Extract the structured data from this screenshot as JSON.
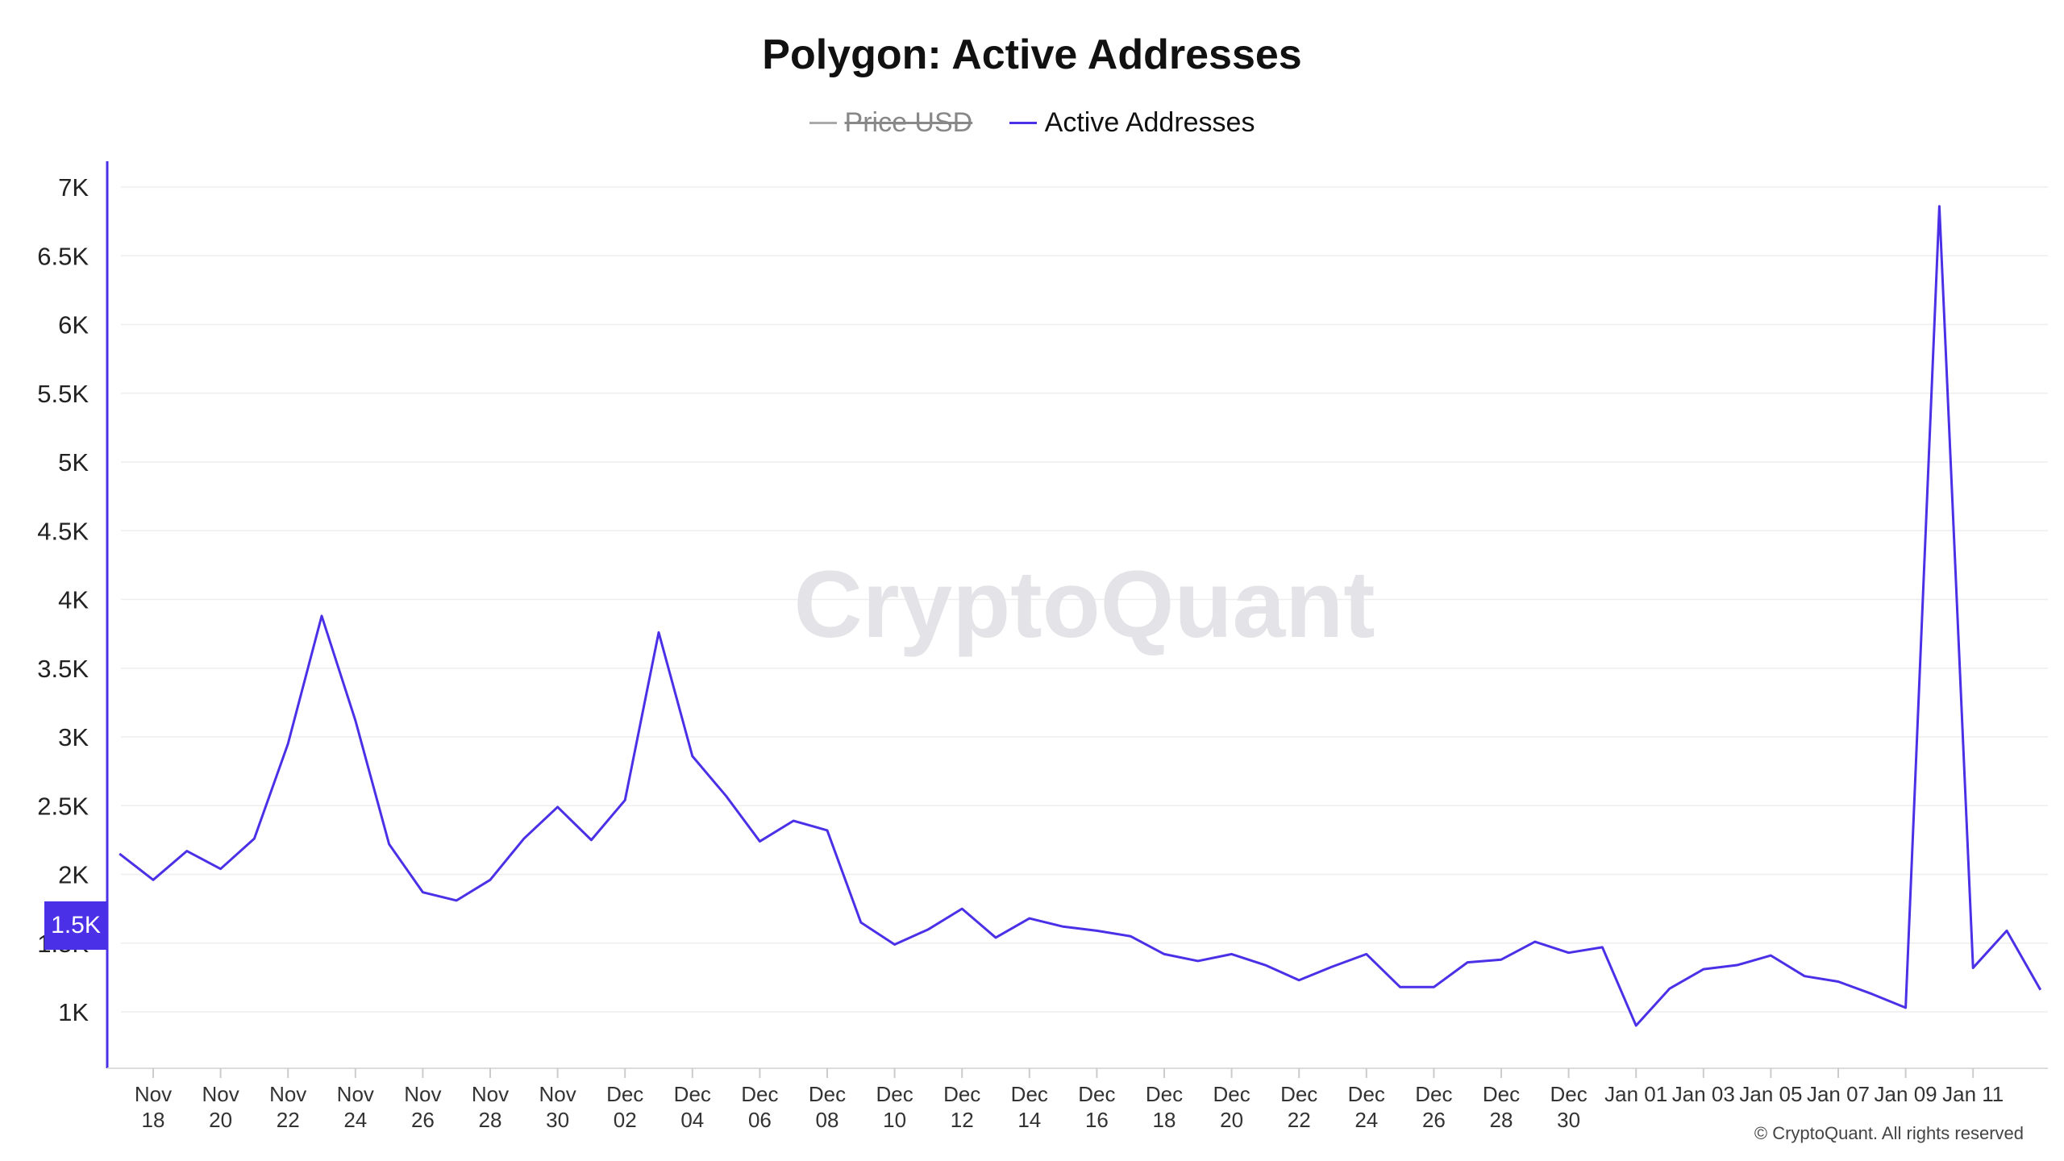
{
  "chart_data": {
    "type": "line",
    "title": "Polygon: Active Addresses",
    "legend": [
      {
        "name": "Price USD",
        "color": "#999999",
        "hidden": true
      },
      {
        "name": "Active Addresses",
        "color": "#4a30e6",
        "hidden": false
      }
    ],
    "y_ticks": [
      "1K",
      "1.5K",
      "2K",
      "2.5K",
      "3K",
      "3.5K",
      "4K",
      "4.5K",
      "5K",
      "5.5K",
      "6K",
      "6.5K",
      "7K"
    ],
    "ylim": [
      600,
      7000
    ],
    "x_ticks": [
      {
        "date": "2022-11-18",
        "line1": "Nov",
        "line2": "18"
      },
      {
        "date": "2022-11-20",
        "line1": "Nov",
        "line2": "20"
      },
      {
        "date": "2022-11-22",
        "line1": "Nov",
        "line2": "22"
      },
      {
        "date": "2022-11-24",
        "line1": "Nov",
        "line2": "24"
      },
      {
        "date": "2022-11-26",
        "line1": "Nov",
        "line2": "26"
      },
      {
        "date": "2022-11-28",
        "line1": "Nov",
        "line2": "28"
      },
      {
        "date": "2022-11-30",
        "line1": "Nov",
        "line2": "30"
      },
      {
        "date": "2022-12-02",
        "line1": "Dec",
        "line2": "02"
      },
      {
        "date": "2022-12-04",
        "line1": "Dec",
        "line2": "04"
      },
      {
        "date": "2022-12-06",
        "line1": "Dec",
        "line2": "06"
      },
      {
        "date": "2022-12-08",
        "line1": "Dec",
        "line2": "08"
      },
      {
        "date": "2022-12-10",
        "line1": "Dec",
        "line2": "10"
      },
      {
        "date": "2022-12-12",
        "line1": "Dec",
        "line2": "12"
      },
      {
        "date": "2022-12-14",
        "line1": "Dec",
        "line2": "14"
      },
      {
        "date": "2022-12-16",
        "line1": "Dec",
        "line2": "16"
      },
      {
        "date": "2022-12-18",
        "line1": "Dec",
        "line2": "18"
      },
      {
        "date": "2022-12-20",
        "line1": "Dec",
        "line2": "20"
      },
      {
        "date": "2022-12-22",
        "line1": "Dec",
        "line2": "22"
      },
      {
        "date": "2022-12-24",
        "line1": "Dec",
        "line2": "24"
      },
      {
        "date": "2022-12-26",
        "line1": "Dec",
        "line2": "26"
      },
      {
        "date": "2022-12-28",
        "line1": "Dec",
        "line2": "28"
      },
      {
        "date": "2022-12-30",
        "line1": "Dec",
        "line2": "30"
      },
      {
        "date": "2023-01-01",
        "line1": "Jan 01",
        "line2": ""
      },
      {
        "date": "2023-01-03",
        "line1": "Jan 03",
        "line2": ""
      },
      {
        "date": "2023-01-05",
        "line1": "Jan 05",
        "line2": ""
      },
      {
        "date": "2023-01-07",
        "line1": "Jan 07",
        "line2": ""
      },
      {
        "date": "2023-01-09",
        "line1": "Jan 09",
        "line2": ""
      },
      {
        "date": "2023-01-11",
        "line1": "Jan 11",
        "line2": ""
      }
    ],
    "series": [
      {
        "name": "Active Addresses",
        "color": "#4a30e6",
        "x": [
          "2022-11-17",
          "2022-11-18",
          "2022-11-19",
          "2022-11-20",
          "2022-11-21",
          "2022-11-22",
          "2022-11-23",
          "2022-11-24",
          "2022-11-25",
          "2022-11-26",
          "2022-11-27",
          "2022-11-28",
          "2022-11-29",
          "2022-11-30",
          "2022-12-01",
          "2022-12-02",
          "2022-12-03",
          "2022-12-04",
          "2022-12-05",
          "2022-12-06",
          "2022-12-07",
          "2022-12-08",
          "2022-12-09",
          "2022-12-10",
          "2022-12-11",
          "2022-12-12",
          "2022-12-13",
          "2022-12-14",
          "2022-12-15",
          "2022-12-16",
          "2022-12-17",
          "2022-12-18",
          "2022-12-19",
          "2022-12-20",
          "2022-12-21",
          "2022-12-22",
          "2022-12-23",
          "2022-12-24",
          "2022-12-25",
          "2022-12-26",
          "2022-12-27",
          "2022-12-28",
          "2022-12-29",
          "2022-12-30",
          "2022-12-31",
          "2023-01-01",
          "2023-01-02",
          "2023-01-03",
          "2023-01-04",
          "2023-01-05",
          "2023-01-06",
          "2023-01-07",
          "2023-01-08",
          "2023-01-09",
          "2023-01-10",
          "2023-01-11",
          "2023-01-12",
          "2023-01-13"
        ],
        "values": [
          2150,
          1960,
          2170,
          2040,
          2260,
          2950,
          3880,
          3120,
          2220,
          1870,
          1810,
          1960,
          2260,
          2490,
          2250,
          2540,
          3760,
          2860,
          2570,
          2240,
          2390,
          2320,
          1650,
          1490,
          1600,
          1750,
          1540,
          1680,
          1620,
          1590,
          1550,
          1420,
          1370,
          1420,
          1340,
          1230,
          1330,
          1420,
          1180,
          1180,
          1360,
          1380,
          1510,
          1430,
          1470,
          900,
          1170,
          1310,
          1340,
          1410,
          1260,
          1220,
          1130,
          1030,
          6860,
          1320,
          1590,
          1160
        ]
      }
    ],
    "cursor_value": "1.5K",
    "watermark": "CryptoQuant",
    "credit": "© CryptoQuant. All rights reserved"
  }
}
